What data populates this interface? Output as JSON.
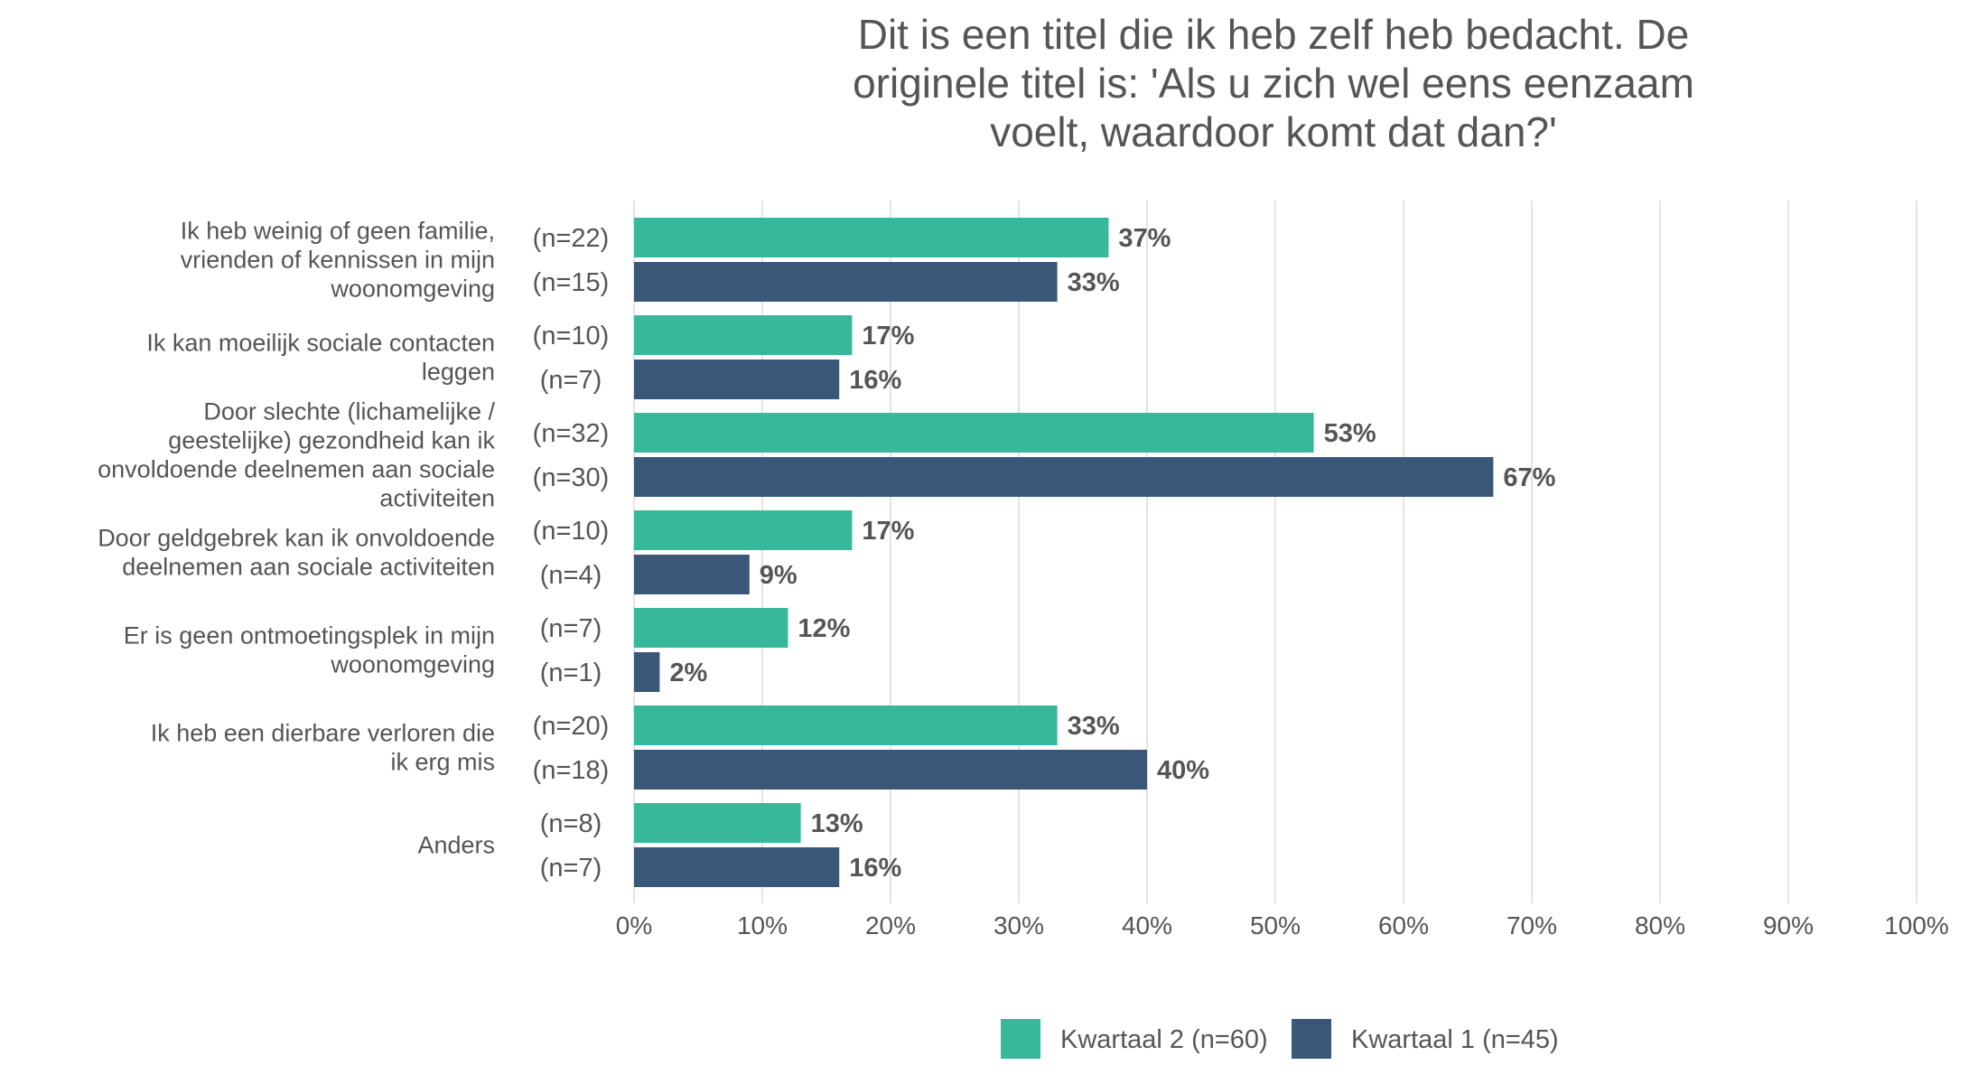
{
  "chart_data": {
    "type": "bar",
    "orientation": "horizontal",
    "title_lines": [
      "Dit is een titel die ik heb zelf heb bedacht. De",
      "originele titel is: 'Als u zich wel eens eenzaam",
      "voelt, waardoor komt dat dan?'"
    ],
    "categories": [
      [
        "Ik heb weinig of geen familie,",
        "vrienden of kennissen in mijn",
        "woonomgeving"
      ],
      [
        "Ik kan moeilijk sociale contacten",
        "leggen"
      ],
      [
        "Door slechte (lichamelijke /",
        "geestelijke) gezondheid kan ik",
        "onvoldoende deelnemen aan sociale",
        "activiteiten"
      ],
      [
        "Door geldgebrek kan ik onvoldoende",
        "deelnemen aan sociale activiteiten"
      ],
      [
        "Er is geen ontmoetingsplek in mijn",
        "woonomgeving"
      ],
      [
        "Ik heb een dierbare verloren die",
        "ik erg mis"
      ],
      [
        "Anders"
      ]
    ],
    "series": [
      {
        "name": "Kwartaal 2 (n=60)",
        "color": "#37b89a",
        "values": [
          37,
          17,
          53,
          17,
          12,
          33,
          13
        ],
        "value_labels": [
          "37%",
          "17%",
          "53%",
          "17%",
          "12%",
          "33%",
          "13%"
        ],
        "counts": [
          "(n=22)",
          "(n=10)",
          "(n=32)",
          "(n=10)",
          "(n=7)",
          "(n=20)",
          "(n=8)"
        ]
      },
      {
        "name": "Kwartaal 1 (n=45)",
        "color": "#3a5779",
        "values": [
          33,
          16,
          67,
          9,
          2,
          40,
          16
        ],
        "value_labels": [
          "33%",
          "16%",
          "67%",
          "9%",
          "2%",
          "40%",
          "16%"
        ],
        "counts": [
          "(n=15)",
          "(n=7)",
          "(n=30)",
          "(n=4)",
          "(n=1)",
          "(n=18)",
          "(n=7)"
        ]
      }
    ],
    "xlim": [
      0,
      100
    ],
    "xticks": [
      0,
      10,
      20,
      30,
      40,
      50,
      60,
      70,
      80,
      90,
      100
    ],
    "xtick_labels": [
      "0%",
      "10%",
      "20%",
      "30%",
      "40%",
      "50%",
      "60%",
      "70%",
      "80%",
      "90%",
      "100%"
    ],
    "grid": "vertical",
    "legend_position": "bottom"
  }
}
